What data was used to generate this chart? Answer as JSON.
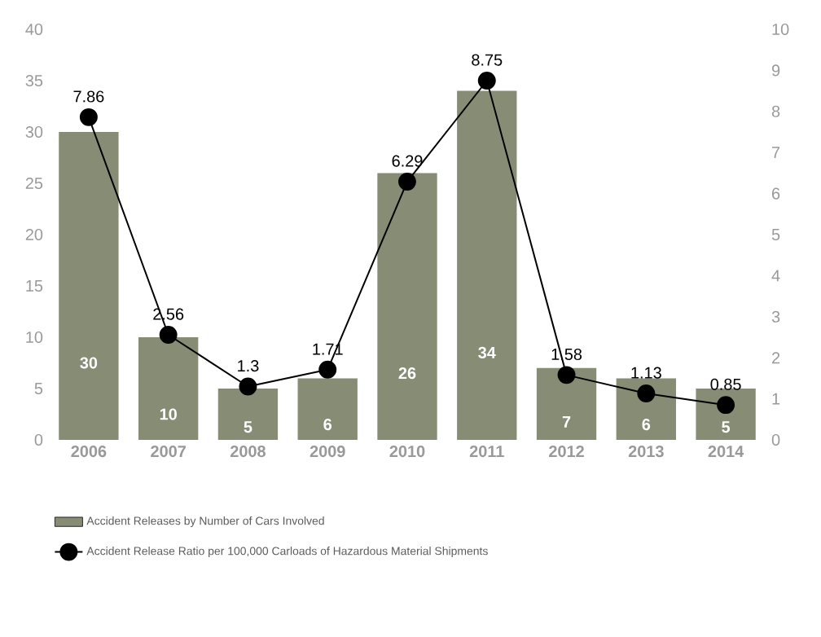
{
  "chart_data": {
    "type": "bar",
    "categories": [
      "2006",
      "2007",
      "2008",
      "2009",
      "2010",
      "2011",
      "2012",
      "2013",
      "2014"
    ],
    "series": [
      {
        "name": "Accident Releases by Number of Cars Involved",
        "color": "#878c75",
        "values": [
          30,
          10,
          5,
          6,
          26,
          34,
          7,
          6,
          5
        ]
      },
      {
        "name": "Accident Release Ratio per 100,000 Carloads of Hazardous Material Shipments",
        "type": "line",
        "axis": "y2",
        "color": "#000000",
        "values": [
          7.86,
          2.56,
          1.3,
          1.71,
          6.29,
          8.75,
          1.58,
          1.13,
          0.85
        ]
      }
    ],
    "ylim": [
      0,
      40
    ],
    "yticks": [
      0,
      5,
      10,
      15,
      20,
      25,
      30,
      35,
      40
    ],
    "y2lim": [
      0,
      10
    ],
    "y2ticks": [
      0,
      1,
      2,
      3,
      4,
      5,
      6,
      7,
      8,
      9,
      10
    ],
    "data_labels": true,
    "legend": "bottom",
    "marker": "circle",
    "line_style": "solid",
    "grid": false
  }
}
